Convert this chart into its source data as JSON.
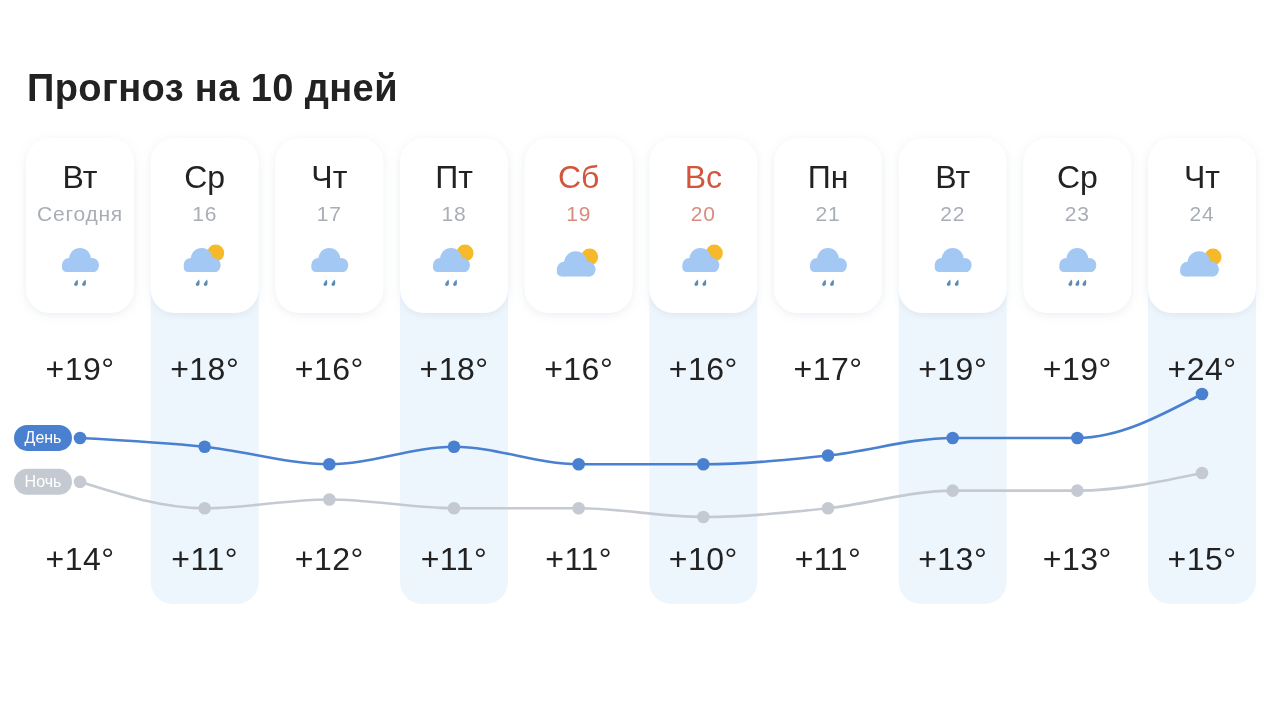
{
  "chart_data": {
    "type": "line",
    "title": "Прогноз на 10 дней",
    "categories": [
      "Вт\nСегодня",
      "Ср\n16",
      "Чт\n17",
      "Пт\n18",
      "Сб\n19",
      "Вс\n20",
      "Пн\n21",
      "Вт\n22",
      "Ср\n23",
      "Чт\n24"
    ],
    "series": [
      {
        "name": "День",
        "color": "#4a80d0",
        "values": [
          19,
          18,
          16,
          18,
          16,
          16,
          17,
          19,
          19,
          24
        ],
        "value_labels": [
          "+19°",
          "+18°",
          "+16°",
          "+18°",
          "+16°",
          "+16°",
          "+17°",
          "+19°",
          "+19°",
          "+24°"
        ]
      },
      {
        "name": "Ночь",
        "color": "#c5cad2",
        "values": [
          14,
          11,
          12,
          11,
          11,
          10,
          11,
          13,
          13,
          15
        ],
        "value_labels": [
          "+14°",
          "+11°",
          "+12°",
          "+11°",
          "+11°",
          "+10°",
          "+11°",
          "+13°",
          "+13°",
          "+15°"
        ]
      }
    ],
    "marker": "circle"
  }
}
